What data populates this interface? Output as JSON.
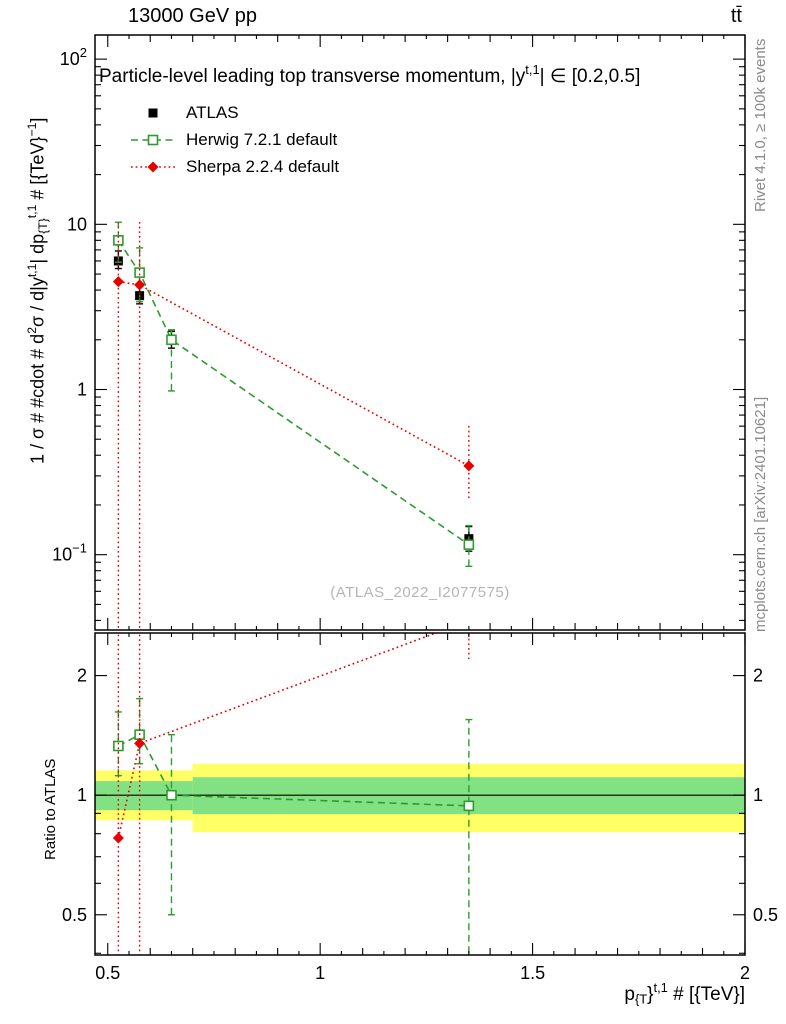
{
  "header": {
    "left_title": "13000 GeV pp",
    "right_title": "tt̄"
  },
  "right_margin": {
    "top_text": "Rivet 4.1.0, ≥ 100k events",
    "bottom_text": "mcplots.cern.ch [arXiv:2401.10621]"
  },
  "watermark": "(ATLAS_2022_I2077575)",
  "ratio_label": "Ratio to ATLAS",
  "chart_data": {
    "type": "scatter",
    "title_parts": [
      [
        "n",
        "Particle-level leading top transverse momentum, |y"
      ],
      [
        "sup",
        "t,1"
      ],
      [
        "n",
        "| ∈ [0.2,0.5]"
      ]
    ],
    "xlabel_parts": [
      [
        "n",
        "p"
      ],
      [
        "sub",
        "{T"
      ],
      [
        "n",
        "}"
      ],
      [
        "sup",
        "t,1"
      ],
      [
        "n",
        " # [{TeV}]"
      ]
    ],
    "ylabel_parts": [
      [
        "n",
        "1 / σ # #cdot # d"
      ],
      [
        "sup",
        "2"
      ],
      [
        "n",
        "σ / d|y"
      ],
      [
        "sup",
        "t,1"
      ],
      [
        "n",
        "| dp"
      ],
      [
        "sub",
        "{T}"
      ],
      [
        "sup",
        "t,1"
      ],
      [
        "n",
        " # [{TeV}"
      ],
      [
        "sup",
        "−1"
      ],
      [
        "n",
        "]"
      ]
    ],
    "x_range": [
      0.47,
      2.0
    ],
    "x_ticks": [
      0.5,
      1.0,
      1.5,
      2.0
    ],
    "x_tick_labels": [
      "0.5",
      "1",
      "1.5",
      "2"
    ],
    "main_axis": {
      "scale": "log",
      "range": [
        0.035,
        140
      ],
      "major_ticks": [
        100,
        10,
        1,
        0.1
      ]
    },
    "ratio_axis": {
      "scale": "log",
      "range": [
        0.396,
        2.56
      ],
      "major_ticks": [
        2,
        1,
        0.5
      ],
      "tick_labels": [
        "2",
        "1",
        "0.5"
      ]
    },
    "colors": {
      "band_yellow": "#ffff66",
      "band_green": "#82e182",
      "atlas": "#000000",
      "herwig": "#2e9b2e",
      "sherpa": "#e60000"
    },
    "bands": [
      {
        "x0": 0.47,
        "x1": 0.7,
        "yellow": [
          0.865,
          1.155
        ],
        "green": [
          0.917,
          1.085
        ]
      },
      {
        "x0": 0.7,
        "x1": 2.0,
        "yellow": [
          0.807,
          1.2
        ],
        "green": [
          0.896,
          1.11
        ]
      }
    ],
    "series": [
      {
        "id": "atlas",
        "name": "ATLAS",
        "color": "#000000",
        "marker": "square-filled",
        "line_style": "none",
        "caps": true,
        "x": [
          0.525,
          0.575,
          0.65,
          1.35
        ],
        "y": [
          6.0,
          3.7,
          2.0,
          0.125
        ],
        "y_lo": [
          5.4,
          3.3,
          1.78,
          0.105
        ],
        "y_hi": [
          6.9,
          4.2,
          2.25,
          0.148
        ],
        "ratio": null
      },
      {
        "id": "herwig",
        "name": "Herwig 7.2.1 default",
        "color": "#2e9b2e",
        "marker": "square-open",
        "line_style": "dashed",
        "caps": true,
        "x": [
          0.525,
          0.575,
          0.65,
          1.35
        ],
        "y": [
          8.0,
          5.1,
          2.0,
          0.115
        ],
        "y_lo": [
          5.9,
          3.4,
          0.98,
          0.085
        ],
        "y_hi": [
          10.3,
          7.2,
          2.3,
          0.15
        ],
        "ratio": [
          1.33,
          1.42,
          1.0,
          0.94
        ],
        "ratio_lo": [
          1.12,
          1.2,
          0.5,
          0.35
        ],
        "ratio_hi": [
          1.62,
          1.75,
          1.42,
          1.55
        ]
      },
      {
        "id": "sherpa",
        "name": "Sherpa 2.2.4 default",
        "color": "#e60000",
        "marker": "diamond-filled",
        "line_style": "dotted",
        "caps": false,
        "x": [
          0.525,
          0.575,
          1.35
        ],
        "y": [
          4.5,
          4.3,
          0.345
        ],
        "y_lo": [
          0.02,
          0.02,
          0.22
        ],
        "y_hi": [
          10.2,
          10.5,
          0.62
        ],
        "ratio": [
          0.78,
          1.35,
          2.75
        ],
        "ratio_lo": [
          0.3,
          0.3,
          2.2
        ],
        "ratio_hi": [
          2.6,
          2.6,
          3.3
        ]
      }
    ]
  }
}
